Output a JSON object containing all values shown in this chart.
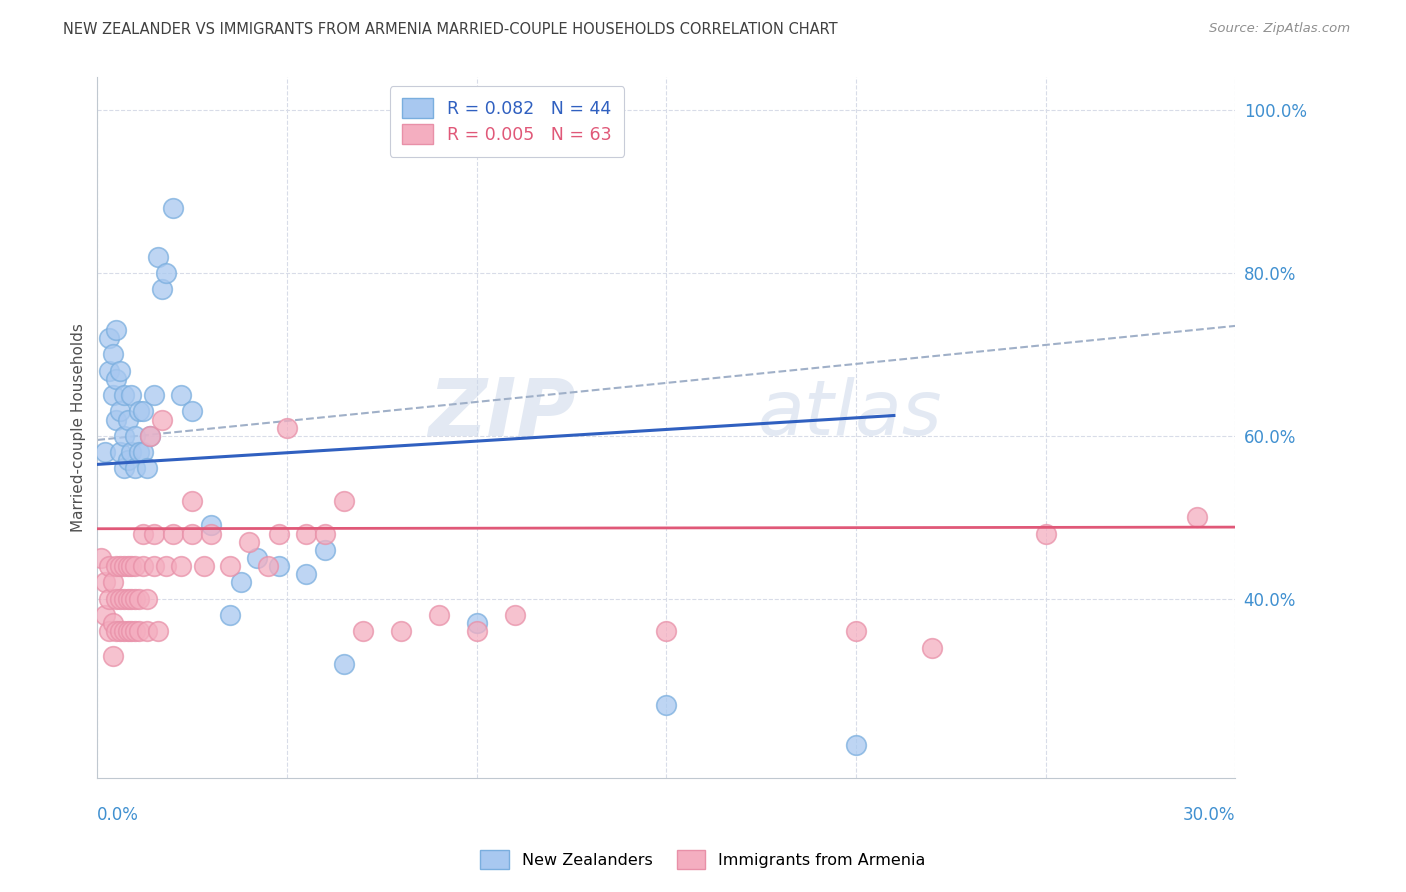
{
  "title": "NEW ZEALANDER VS IMMIGRANTS FROM ARMENIA MARRIED-COUPLE HOUSEHOLDS CORRELATION CHART",
  "source": "Source: ZipAtlas.com",
  "ylabel": "Married-couple Households",
  "legend_label1": "New Zealanders",
  "legend_label2": "Immigrants from Armenia",
  "xlim": [
    0.0,
    0.3
  ],
  "ylim": [
    0.18,
    1.04
  ],
  "watermark_line1": "ZIP",
  "watermark_line2": "atlas",
  "blue_scatter_x": [
    0.002,
    0.003,
    0.003,
    0.004,
    0.004,
    0.005,
    0.005,
    0.005,
    0.006,
    0.006,
    0.006,
    0.007,
    0.007,
    0.007,
    0.008,
    0.008,
    0.009,
    0.009,
    0.01,
    0.01,
    0.011,
    0.011,
    0.012,
    0.012,
    0.013,
    0.014,
    0.015,
    0.016,
    0.017,
    0.018,
    0.02,
    0.022,
    0.025,
    0.03,
    0.035,
    0.038,
    0.042,
    0.048,
    0.055,
    0.06,
    0.065,
    0.1,
    0.15,
    0.2
  ],
  "blue_scatter_y": [
    0.58,
    0.72,
    0.68,
    0.65,
    0.7,
    0.62,
    0.67,
    0.73,
    0.58,
    0.63,
    0.68,
    0.56,
    0.6,
    0.65,
    0.57,
    0.62,
    0.58,
    0.65,
    0.56,
    0.6,
    0.58,
    0.63,
    0.58,
    0.63,
    0.56,
    0.6,
    0.65,
    0.82,
    0.78,
    0.8,
    0.88,
    0.65,
    0.63,
    0.49,
    0.38,
    0.42,
    0.45,
    0.44,
    0.43,
    0.46,
    0.32,
    0.37,
    0.27,
    0.22
  ],
  "pink_scatter_x": [
    0.001,
    0.002,
    0.002,
    0.003,
    0.003,
    0.003,
    0.004,
    0.004,
    0.004,
    0.005,
    0.005,
    0.005,
    0.006,
    0.006,
    0.006,
    0.007,
    0.007,
    0.007,
    0.008,
    0.008,
    0.008,
    0.009,
    0.009,
    0.009,
    0.01,
    0.01,
    0.01,
    0.011,
    0.011,
    0.012,
    0.012,
    0.013,
    0.013,
    0.014,
    0.015,
    0.015,
    0.016,
    0.017,
    0.018,
    0.02,
    0.022,
    0.025,
    0.025,
    0.028,
    0.03,
    0.035,
    0.04,
    0.045,
    0.048,
    0.05,
    0.055,
    0.06,
    0.065,
    0.07,
    0.08,
    0.09,
    0.1,
    0.11,
    0.15,
    0.2,
    0.22,
    0.25,
    0.29
  ],
  "pink_scatter_y": [
    0.45,
    0.38,
    0.42,
    0.36,
    0.4,
    0.44,
    0.33,
    0.37,
    0.42,
    0.36,
    0.4,
    0.44,
    0.36,
    0.4,
    0.44,
    0.36,
    0.4,
    0.44,
    0.36,
    0.4,
    0.44,
    0.36,
    0.4,
    0.44,
    0.36,
    0.4,
    0.44,
    0.36,
    0.4,
    0.44,
    0.48,
    0.36,
    0.4,
    0.6,
    0.44,
    0.48,
    0.36,
    0.62,
    0.44,
    0.48,
    0.44,
    0.48,
    0.52,
    0.44,
    0.48,
    0.44,
    0.47,
    0.44,
    0.48,
    0.61,
    0.48,
    0.48,
    0.52,
    0.36,
    0.36,
    0.38,
    0.36,
    0.38,
    0.36,
    0.36,
    0.34,
    0.48,
    0.5
  ],
  "blue_line_x": [
    0.0,
    0.21
  ],
  "blue_line_y": [
    0.565,
    0.625
  ],
  "pink_line_x": [
    0.0,
    0.3
  ],
  "pink_line_y": [
    0.486,
    0.488
  ],
  "dashed_line_x": [
    0.0,
    0.3
  ],
  "dashed_line_y": [
    0.595,
    0.735
  ],
  "blue_color": "#a8c8f0",
  "blue_edge_color": "#7aaede",
  "pink_color": "#f4aec0",
  "pink_edge_color": "#e890a8",
  "blue_line_color": "#3060c0",
  "pink_line_color": "#e05878",
  "dashed_line_color": "#a0b0c8",
  "grid_color": "#d8dce8",
  "title_color": "#404040",
  "right_axis_color": "#4090d0",
  "source_color": "#909090",
  "background_color": "#ffffff"
}
